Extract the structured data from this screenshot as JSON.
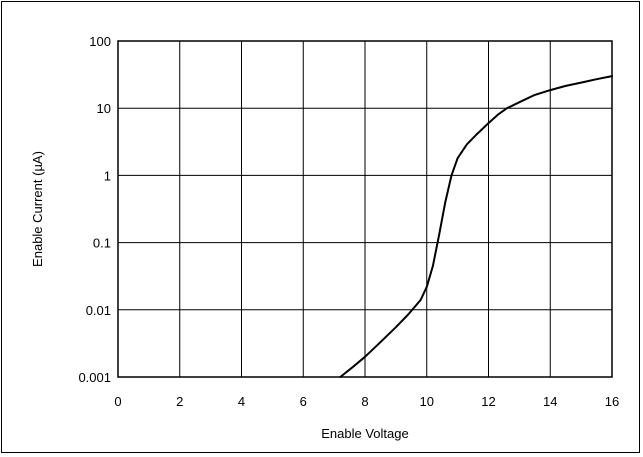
{
  "chart_data": {
    "type": "line",
    "title": "",
    "xlabel": "Enable Voltage",
    "ylabel": "Enable Current (µA)",
    "x_scale": "linear",
    "y_scale": "log",
    "xlim": [
      0,
      16
    ],
    "ylim": [
      0.001,
      100
    ],
    "x_ticks": [
      0,
      2,
      4,
      6,
      8,
      10,
      12,
      14,
      16
    ],
    "x_tick_labels": [
      "0",
      "2",
      "4",
      "6",
      "8",
      "10",
      "12",
      "14",
      "16"
    ],
    "y_ticks": [
      0.001,
      0.01,
      0.1,
      1,
      10,
      100
    ],
    "y_tick_labels": [
      "0.001",
      "0.01",
      "0.1",
      "1",
      "10",
      "100"
    ],
    "grid": true,
    "legend": "none",
    "line_color": "#000000",
    "series": [
      {
        "x": [
          7.2,
          7.6,
          8.0,
          8.5,
          9.0,
          9.4,
          9.8,
          10.0,
          10.2,
          10.4,
          10.6,
          10.8,
          11.0,
          11.3,
          11.6,
          12.0,
          12.3,
          12.6,
          13.0,
          13.5,
          14.0,
          14.5,
          15.0,
          15.5,
          16.0
        ],
        "y": [
          0.001,
          0.0014,
          0.002,
          0.0033,
          0.0055,
          0.0085,
          0.014,
          0.022,
          0.045,
          0.13,
          0.4,
          1.0,
          1.8,
          2.9,
          4.0,
          6.0,
          8.0,
          10.0,
          12.3,
          15.8,
          18.6,
          21.5,
          24.0,
          27.0,
          30.0
        ]
      }
    ]
  }
}
